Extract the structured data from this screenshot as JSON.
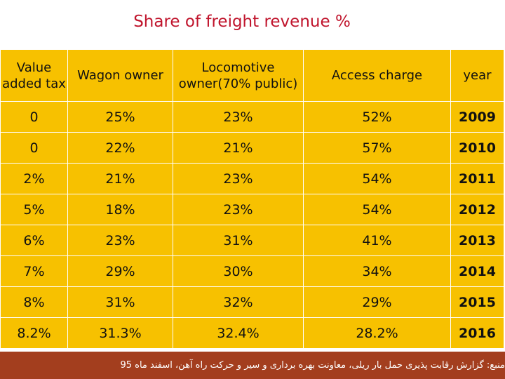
{
  "title": "Share of freight revenue %",
  "table": {
    "headers": {
      "vat": "Value added tax",
      "wagon": "Wagon owner",
      "loco": "Locomotive owner(70% public)",
      "access": "Access charge",
      "year": "year"
    },
    "rows": [
      {
        "vat": "0",
        "wagon": "25%",
        "loco": "23%",
        "access": "52%",
        "year": "2009"
      },
      {
        "vat": "0",
        "wagon": "22%",
        "loco": "21%",
        "access": "57%",
        "year": "2010"
      },
      {
        "vat": "2%",
        "wagon": "21%",
        "loco": "23%",
        "access": "54%",
        "year": "2011"
      },
      {
        "vat": "5%",
        "wagon": "18%",
        "loco": "23%",
        "access": "54%",
        "year": "2012"
      },
      {
        "vat": "6%",
        "wagon": "23%",
        "loco": "31%",
        "access": "41%",
        "year": "2013"
      },
      {
        "vat": "7%",
        "wagon": "29%",
        "loco": "30%",
        "access": "34%",
        "year": "2014"
      },
      {
        "vat": "8%",
        "wagon": "31%",
        "loco": "32%",
        "access": "29%",
        "year": "2015"
      },
      {
        "vat": "8.2%",
        "wagon": "31.3%",
        "loco": "32.4%",
        "access": "28.2%",
        "year": "2016"
      }
    ]
  },
  "footer": {
    "text": "منبع: گزارش رقابت پذیری حمل بار ریلی، معاونت بهره برداری و سیر و حرکت راه آهن، اسفند ماه 95"
  },
  "colors": {
    "title": "#c0142c",
    "cell": "#f7c100",
    "footer": "#a33e1e"
  }
}
